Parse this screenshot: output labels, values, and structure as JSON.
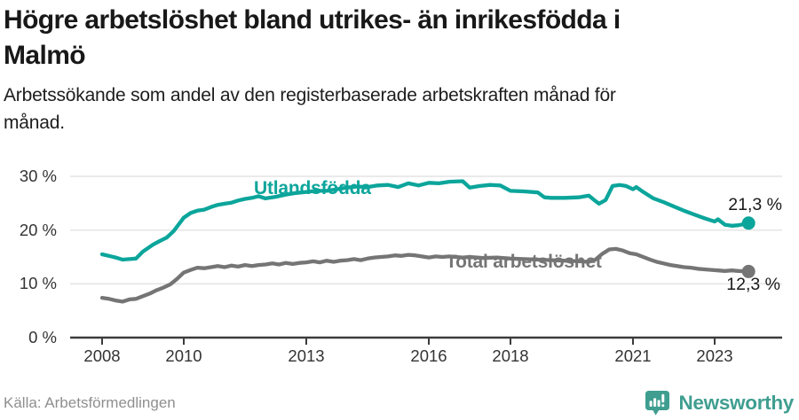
{
  "header": {
    "title_line1": "Högre arbetslöshet bland utrikes- än inrikesfödda i",
    "title_line2": "Malmö",
    "subtitle_line1": "Arbetssökande som andel av den registerbaserade arbetskraften månad för",
    "subtitle_line2": "månad."
  },
  "footer": {
    "source": "Källa: Arbetsförmedlingen",
    "brand": "Newsworthy"
  },
  "colors": {
    "teal": "#0ca59b",
    "line_gray": "#757575",
    "axis": "#3c3c3c",
    "grid": "#e3e3e3",
    "brand_teal": "#3f9e90",
    "text_dark": "#181818"
  },
  "chart_data": {
    "type": "line",
    "title": "Högre arbetslöshet bland utrikes- än inrikesfödda i Malmö",
    "subtitle": "Arbetssökande som andel av den registerbaserade arbetskraften månad för månad.",
    "source": "Källa: Arbetsförmedlingen",
    "x_domain": [
      2008,
      2023.83
    ],
    "y_domain": [
      0,
      30
    ],
    "grid": true,
    "y_ticks": [
      "30 %",
      "20 %",
      "10 %",
      "0 %"
    ],
    "y_tick_values": [
      30,
      20,
      10,
      0
    ],
    "x_ticks": [
      "2008",
      "2010",
      "2013",
      "2016",
      "2018",
      "2021",
      "2023"
    ],
    "x_tick_years": [
      2008,
      2010,
      2013,
      2016,
      2018,
      2021,
      2023
    ],
    "series": [
      {
        "name": "Utlandsfödda",
        "color": "#0ca59b",
        "end_label": "21,3 %",
        "end_value": 21.3,
        "points": [
          [
            2008.0,
            15.5
          ],
          [
            2008.17,
            15.2
          ],
          [
            2008.33,
            14.9
          ],
          [
            2008.5,
            14.5
          ],
          [
            2008.67,
            14.6
          ],
          [
            2008.83,
            14.7
          ],
          [
            2009.0,
            16.0
          ],
          [
            2009.25,
            17.3
          ],
          [
            2009.42,
            18.0
          ],
          [
            2009.58,
            18.6
          ],
          [
            2009.75,
            19.8
          ],
          [
            2010.0,
            22.3
          ],
          [
            2010.17,
            23.2
          ],
          [
            2010.33,
            23.6
          ],
          [
            2010.5,
            23.8
          ],
          [
            2010.67,
            24.3
          ],
          [
            2010.83,
            24.7
          ],
          [
            2011.0,
            24.9
          ],
          [
            2011.17,
            25.1
          ],
          [
            2011.33,
            25.5
          ],
          [
            2011.5,
            25.8
          ],
          [
            2011.67,
            26.0
          ],
          [
            2011.83,
            26.3
          ],
          [
            2012.0,
            25.9
          ],
          [
            2012.25,
            26.2
          ],
          [
            2012.5,
            26.6
          ],
          [
            2012.75,
            26.9
          ],
          [
            2013.0,
            27.1
          ],
          [
            2013.25,
            27.3
          ],
          [
            2013.5,
            27.3
          ],
          [
            2013.75,
            27.6
          ],
          [
            2014.0,
            27.9
          ],
          [
            2014.25,
            28.1
          ],
          [
            2014.5,
            28.0
          ],
          [
            2014.75,
            28.3
          ],
          [
            2015.0,
            28.4
          ],
          [
            2015.25,
            28.0
          ],
          [
            2015.5,
            28.7
          ],
          [
            2015.75,
            28.3
          ],
          [
            2016.0,
            28.8
          ],
          [
            2016.25,
            28.7
          ],
          [
            2016.5,
            29.0
          ],
          [
            2016.83,
            29.1
          ],
          [
            2017.0,
            27.9
          ],
          [
            2017.25,
            28.2
          ],
          [
            2017.5,
            28.4
          ],
          [
            2017.75,
            28.3
          ],
          [
            2018.0,
            27.3
          ],
          [
            2018.33,
            27.2
          ],
          [
            2018.67,
            27.0
          ],
          [
            2018.83,
            26.1
          ],
          [
            2019.0,
            26.0
          ],
          [
            2019.33,
            26.0
          ],
          [
            2019.67,
            26.1
          ],
          [
            2019.92,
            26.4
          ],
          [
            2020.08,
            25.4
          ],
          [
            2020.17,
            24.9
          ],
          [
            2020.33,
            25.6
          ],
          [
            2020.5,
            28.2
          ],
          [
            2020.67,
            28.4
          ],
          [
            2020.83,
            28.2
          ],
          [
            2021.0,
            27.6
          ],
          [
            2021.08,
            28.0
          ],
          [
            2021.25,
            27.1
          ],
          [
            2021.5,
            25.9
          ],
          [
            2021.75,
            25.2
          ],
          [
            2022.0,
            24.4
          ],
          [
            2022.25,
            23.6
          ],
          [
            2022.5,
            22.9
          ],
          [
            2022.75,
            22.2
          ],
          [
            2023.0,
            21.6
          ],
          [
            2023.08,
            22.0
          ],
          [
            2023.25,
            21.0
          ],
          [
            2023.42,
            20.8
          ],
          [
            2023.58,
            20.9
          ],
          [
            2023.83,
            21.3
          ]
        ]
      },
      {
        "name": "Total arbetslöshet",
        "color": "#757575",
        "end_label": "12,3 %",
        "end_value": 12.3,
        "points": [
          [
            2008.0,
            7.4
          ],
          [
            2008.17,
            7.2
          ],
          [
            2008.33,
            6.9
          ],
          [
            2008.5,
            6.7
          ],
          [
            2008.67,
            7.1
          ],
          [
            2008.83,
            7.2
          ],
          [
            2009.0,
            7.7
          ],
          [
            2009.17,
            8.2
          ],
          [
            2009.33,
            8.8
          ],
          [
            2009.5,
            9.3
          ],
          [
            2009.67,
            9.9
          ],
          [
            2009.83,
            10.9
          ],
          [
            2010.0,
            12.1
          ],
          [
            2010.17,
            12.6
          ],
          [
            2010.33,
            13.0
          ],
          [
            2010.5,
            12.9
          ],
          [
            2010.67,
            13.1
          ],
          [
            2010.83,
            13.3
          ],
          [
            2011.0,
            13.1
          ],
          [
            2011.17,
            13.4
          ],
          [
            2011.33,
            13.2
          ],
          [
            2011.5,
            13.5
          ],
          [
            2011.67,
            13.3
          ],
          [
            2011.83,
            13.5
          ],
          [
            2012.0,
            13.6
          ],
          [
            2012.17,
            13.8
          ],
          [
            2012.33,
            13.6
          ],
          [
            2012.5,
            13.9
          ],
          [
            2012.67,
            13.7
          ],
          [
            2012.83,
            13.9
          ],
          [
            2013.0,
            14.0
          ],
          [
            2013.17,
            14.2
          ],
          [
            2013.33,
            14.0
          ],
          [
            2013.5,
            14.3
          ],
          [
            2013.67,
            14.1
          ],
          [
            2013.83,
            14.3
          ],
          [
            2014.0,
            14.4
          ],
          [
            2014.17,
            14.6
          ],
          [
            2014.33,
            14.4
          ],
          [
            2014.5,
            14.7
          ],
          [
            2014.67,
            14.9
          ],
          [
            2014.83,
            15.0
          ],
          [
            2015.0,
            15.1
          ],
          [
            2015.17,
            15.3
          ],
          [
            2015.33,
            15.2
          ],
          [
            2015.5,
            15.4
          ],
          [
            2015.67,
            15.3
          ],
          [
            2015.83,
            15.1
          ],
          [
            2016.0,
            14.9
          ],
          [
            2016.17,
            15.1
          ],
          [
            2016.33,
            15.0
          ],
          [
            2016.5,
            15.1
          ],
          [
            2016.67,
            15.0
          ],
          [
            2016.83,
            14.9
          ],
          [
            2017.0,
            15.0
          ],
          [
            2017.33,
            14.8
          ],
          [
            2017.67,
            14.9
          ],
          [
            2018.0,
            14.7
          ],
          [
            2018.33,
            14.6
          ],
          [
            2018.67,
            14.5
          ],
          [
            2019.0,
            14.4
          ],
          [
            2019.33,
            14.3
          ],
          [
            2019.67,
            14.2
          ],
          [
            2019.92,
            14.1
          ],
          [
            2020.08,
            14.5
          ],
          [
            2020.25,
            15.6
          ],
          [
            2020.42,
            16.4
          ],
          [
            2020.58,
            16.5
          ],
          [
            2020.75,
            16.2
          ],
          [
            2020.92,
            15.7
          ],
          [
            2021.08,
            15.5
          ],
          [
            2021.25,
            15.0
          ],
          [
            2021.42,
            14.5
          ],
          [
            2021.58,
            14.1
          ],
          [
            2021.75,
            13.8
          ],
          [
            2021.92,
            13.5
          ],
          [
            2022.08,
            13.3
          ],
          [
            2022.25,
            13.1
          ],
          [
            2022.42,
            13.0
          ],
          [
            2022.58,
            12.8
          ],
          [
            2022.75,
            12.7
          ],
          [
            2022.92,
            12.6
          ],
          [
            2023.08,
            12.5
          ],
          [
            2023.25,
            12.4
          ],
          [
            2023.42,
            12.5
          ],
          [
            2023.58,
            12.4
          ],
          [
            2023.83,
            12.3
          ]
        ]
      }
    ]
  }
}
